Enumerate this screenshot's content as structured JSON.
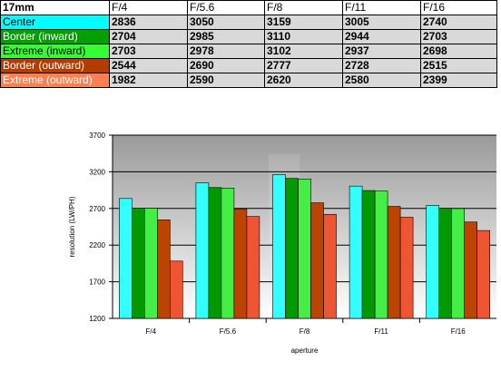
{
  "table": {
    "corner": "17mm",
    "columns": [
      "F/4",
      "F/5.6",
      "F/8",
      "F/11",
      "F/16"
    ],
    "rows": [
      {
        "label": "Center",
        "color": "#00ffff",
        "text_color": "#000000",
        "values": [
          "2836",
          "3050",
          "3159",
          "3005",
          "2740"
        ]
      },
      {
        "label": "Border (inward)",
        "color": "#00a000",
        "text_color": "#ffffff",
        "values": [
          "2704",
          "2985",
          "3110",
          "2944",
          "2703"
        ]
      },
      {
        "label": "Extreme (inward)",
        "color": "#33ff33",
        "text_color": "#000000",
        "values": [
          "2703",
          "2978",
          "3102",
          "2937",
          "2698"
        ]
      },
      {
        "label": "Border (outward)",
        "color": "#b33c00",
        "text_color": "#ffffff",
        "values": [
          "2544",
          "2690",
          "2777",
          "2728",
          "2515"
        ]
      },
      {
        "label": "Extreme (outward)",
        "color": "#ff7f50",
        "text_color": "#ffffff",
        "values": [
          "1982",
          "2590",
          "2620",
          "2580",
          "2399"
        ]
      }
    ]
  },
  "chart_data": {
    "type": "bar",
    "categories": [
      "F/4",
      "F/5.6",
      "F/8",
      "F/11",
      "F/16"
    ],
    "series": [
      {
        "name": "Center",
        "color": "#33ffff",
        "values": [
          2836,
          3050,
          3159,
          3005,
          2740
        ]
      },
      {
        "name": "Border (inward)",
        "color": "#009900",
        "values": [
          2704,
          2985,
          3110,
          2944,
          2703
        ]
      },
      {
        "name": "Extreme (inward)",
        "color": "#44ee44",
        "values": [
          2703,
          2978,
          3102,
          2937,
          2698
        ]
      },
      {
        "name": "Border (outward)",
        "color": "#bb4400",
        "values": [
          2544,
          2690,
          2777,
          2728,
          2515
        ]
      },
      {
        "name": "Extreme (outward)",
        "color": "#ee5533",
        "values": [
          1982,
          2590,
          2620,
          2580,
          2399
        ]
      }
    ],
    "xlabel": "aperture",
    "ylabel": "resolution (LW/PH)",
    "ylim": [
      1200,
      3700
    ],
    "yticks": [
      "3700",
      "3200",
      "2700",
      "2200",
      "1700",
      "1200"
    ],
    "grid": true,
    "legend": "none"
  }
}
